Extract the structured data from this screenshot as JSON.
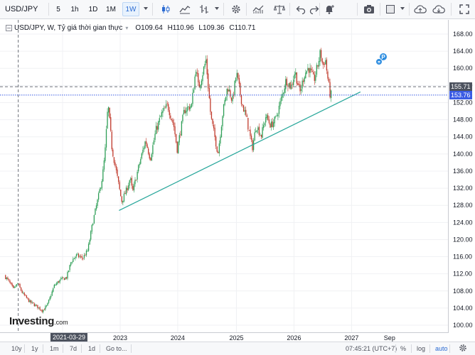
{
  "toolbar": {
    "symbol": "USD/JPY",
    "intervals": [
      "5",
      "1h",
      "1D",
      "1M",
      "1W"
    ],
    "active_interval": "1W"
  },
  "legend": {
    "title": "USD/JPY, W, Tỷ giá thời gian thực",
    "open": "O109.64",
    "high": "H110.96",
    "low": "L109.36",
    "close": "C110.71"
  },
  "price_scale": {
    "ticks": [
      "168.00",
      "164.00",
      "160.00",
      "156.00",
      "152.00",
      "148.00",
      "144.00",
      "140.00",
      "136.00",
      "132.00",
      "128.00",
      "124.00",
      "120.00",
      "116.00",
      "112.00",
      "108.00",
      "104.00",
      "100.00"
    ],
    "last_price_label": "153.76",
    "crosshair_price_label": "155.71",
    "last_price_color": "#3b5ce4",
    "crosshair_color": "#4c525e"
  },
  "time_scale": {
    "ticks": [
      "2022",
      "2023",
      "2024",
      "2025",
      "2026",
      "2027",
      "Sep"
    ],
    "crosshair_date": "2021-03-29",
    "partial_label": "2"
  },
  "chart_data": {
    "type": "candlestick",
    "title": "USD/JPY, W, Tỷ giá thời gian thực",
    "ylim": [
      100,
      170
    ],
    "up_color": "#2e9e56",
    "down_color": "#c0392b",
    "trendline": {
      "from": {
        "date": "2022-12-26",
        "price": 126.8
      },
      "to": {
        "date": "2027-03-01",
        "price": 154.5
      },
      "color": "#26a69a"
    },
    "crosshair": {
      "date": "2021-03-29",
      "price": 155.71
    },
    "last_price": 153.76,
    "path": [
      [
        "2021-01-04",
        111.6
      ],
      [
        "2021-02-01",
        110.2
      ],
      [
        "2021-03-01",
        108.4
      ],
      [
        "2021-03-29",
        109.7
      ],
      [
        "2021-05-01",
        107.3
      ],
      [
        "2021-06-15",
        105.4
      ],
      [
        "2021-08-01",
        104.3
      ],
      [
        "2021-09-01",
        103.4
      ],
      [
        "2021-10-01",
        104.6
      ],
      [
        "2021-11-15",
        109.2
      ],
      [
        "2021-12-20",
        110.5
      ],
      [
        "2022-02-01",
        111.2
      ],
      [
        "2022-03-01",
        114.8
      ],
      [
        "2022-04-01",
        116.3
      ],
      [
        "2022-05-15",
        115.7
      ],
      [
        "2022-06-15",
        117.5
      ],
      [
        "2022-07-15",
        123.8
      ],
      [
        "2022-08-20",
        129.8
      ],
      [
        "2022-09-15",
        134.6
      ],
      [
        "2022-10-01",
        139.8
      ],
      [
        "2022-10-21",
        151.8
      ],
      [
        "2022-11-15",
        141.2
      ],
      [
        "2022-12-10",
        136.3
      ],
      [
        "2023-01-15",
        128.9
      ],
      [
        "2023-02-15",
        131.6
      ],
      [
        "2023-03-10",
        134.4
      ],
      [
        "2023-03-25",
        131.0
      ],
      [
        "2023-05-01",
        136.8
      ],
      [
        "2023-06-15",
        143.2
      ],
      [
        "2023-07-15",
        138.9
      ],
      [
        "2023-08-20",
        145.6
      ],
      [
        "2023-09-25",
        149.3
      ],
      [
        "2023-11-01",
        151.4
      ],
      [
        "2023-12-10",
        146.7
      ],
      [
        "2024-01-01",
        141.1
      ],
      [
        "2024-02-15",
        150.2
      ],
      [
        "2024-04-01",
        151.4
      ],
      [
        "2024-04-29",
        160.2
      ],
      [
        "2024-05-15",
        155.3
      ],
      [
        "2024-07-01",
        161.9
      ],
      [
        "2024-08-01",
        148.6
      ],
      [
        "2024-09-15",
        140.1
      ],
      [
        "2024-10-15",
        149.6
      ],
      [
        "2024-11-15",
        155.8
      ],
      [
        "2024-12-15",
        152.4
      ],
      [
        "2025-01-10",
        158.9
      ],
      [
        "2025-02-15",
        151.6
      ],
      [
        "2025-03-15",
        148.2
      ],
      [
        "2025-04-20",
        141.4
      ],
      [
        "2025-05-15",
        146.8
      ],
      [
        "2025-06-15",
        144.2
      ],
      [
        "2025-07-15",
        148.9
      ],
      [
        "2025-08-15",
        146.6
      ],
      [
        "2025-09-15",
        148.2
      ],
      [
        "2025-10-15",
        152.1
      ],
      [
        "2025-11-20",
        157.4
      ],
      [
        "2025-12-20",
        155.6
      ],
      [
        "2026-01-15",
        159.3
      ],
      [
        "2026-02-15",
        154.3
      ],
      [
        "2026-03-15",
        158.6
      ],
      [
        "2026-04-10",
        160.2
      ],
      [
        "2026-05-15",
        157.2
      ],
      [
        "2026-06-10",
        161.1
      ],
      [
        "2026-06-25",
        163.9
      ],
      [
        "2026-07-10",
        160.4
      ],
      [
        "2026-07-25",
        162.4
      ],
      [
        "2026-08-08",
        158.1
      ],
      [
        "2026-08-25",
        153.8
      ]
    ]
  },
  "markers": {
    "badge_letter": "P"
  },
  "watermark": {
    "brand": "Investing",
    "suffix": ".com"
  },
  "bottombar": {
    "ranges": [
      "10y",
      "1y",
      "1m",
      "7d",
      "1d",
      "Go to..."
    ],
    "clock": "07:45:21 (UTC+7)",
    "percent": "%",
    "log": "log",
    "auto": "auto"
  }
}
